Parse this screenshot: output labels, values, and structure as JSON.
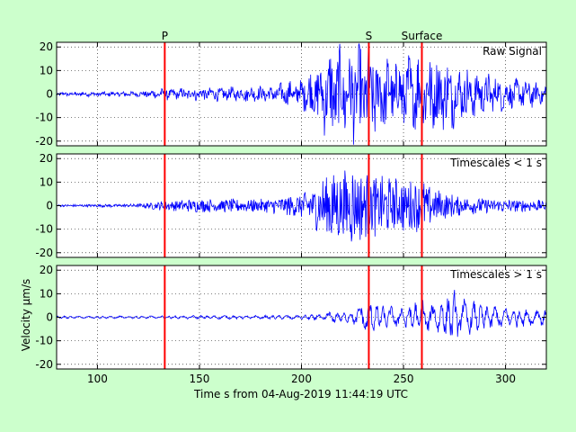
{
  "figure": {
    "background": "#ccffcc",
    "plot_background": "#ffffff",
    "signal_color": "#0000ff",
    "marker_color": "#ff0000"
  },
  "chart_data": {
    "type": "line",
    "xlabel": "Time s from 04-Aug-2019 11:44:19 UTC",
    "ylabel": "Velocity μm/s",
    "xlim": [
      80,
      320
    ],
    "x_ticks": [
      100,
      150,
      200,
      250,
      300
    ],
    "ylim": [
      -22,
      22
    ],
    "y_ticks": [
      -20,
      -10,
      0,
      10,
      20
    ],
    "grid": true,
    "markers": [
      {
        "label": "P",
        "x": 133
      },
      {
        "label": "S",
        "x": 233
      },
      {
        "label": "Surface",
        "x": 259
      }
    ],
    "panels": [
      {
        "title": "Raw Signal",
        "envelope": [
          [
            80,
            0.8
          ],
          [
            120,
            1
          ],
          [
            130,
            2
          ],
          [
            150,
            2.5
          ],
          [
            180,
            3
          ],
          [
            190,
            4
          ],
          [
            200,
            6
          ],
          [
            205,
            9
          ],
          [
            210,
            13
          ],
          [
            215,
            18
          ],
          [
            220,
            17
          ],
          [
            225,
            19
          ],
          [
            230,
            17
          ],
          [
            240,
            16
          ],
          [
            250,
            15
          ],
          [
            260,
            16
          ],
          [
            270,
            14
          ],
          [
            280,
            10
          ],
          [
            290,
            8
          ],
          [
            300,
            6
          ],
          [
            320,
            4.5
          ]
        ],
        "low_freq_amp": 0.3
      },
      {
        "title": "Timescales < 1 s",
        "envelope": [
          [
            80,
            0.5
          ],
          [
            120,
            0.8
          ],
          [
            130,
            2
          ],
          [
            150,
            3
          ],
          [
            180,
            3
          ],
          [
            190,
            4
          ],
          [
            200,
            6
          ],
          [
            205,
            9
          ],
          [
            210,
            13
          ],
          [
            215,
            18
          ],
          [
            220,
            15
          ],
          [
            225,
            19
          ],
          [
            230,
            15
          ],
          [
            240,
            13
          ],
          [
            250,
            12
          ],
          [
            260,
            11
          ],
          [
            270,
            6
          ],
          [
            280,
            4
          ],
          [
            290,
            3.5
          ],
          [
            300,
            3
          ],
          [
            320,
            2.5
          ]
        ],
        "low_freq_amp": 0
      },
      {
        "title": "Timescales > 1 s",
        "envelope": [
          [
            80,
            0.6
          ],
          [
            120,
            0.6
          ],
          [
            150,
            0.8
          ],
          [
            180,
            0.8
          ],
          [
            200,
            1
          ],
          [
            210,
            1.5
          ],
          [
            215,
            3
          ],
          [
            220,
            2
          ],
          [
            225,
            3
          ],
          [
            232,
            8
          ],
          [
            240,
            5
          ],
          [
            250,
            5
          ],
          [
            255,
            7
          ],
          [
            260,
            8
          ],
          [
            265,
            6
          ],
          [
            270,
            10
          ],
          [
            275,
            12
          ],
          [
            280,
            8
          ],
          [
            290,
            6
          ],
          [
            300,
            5
          ],
          [
            310,
            4
          ],
          [
            320,
            4
          ]
        ],
        "low_freq_amp": 1
      }
    ]
  }
}
